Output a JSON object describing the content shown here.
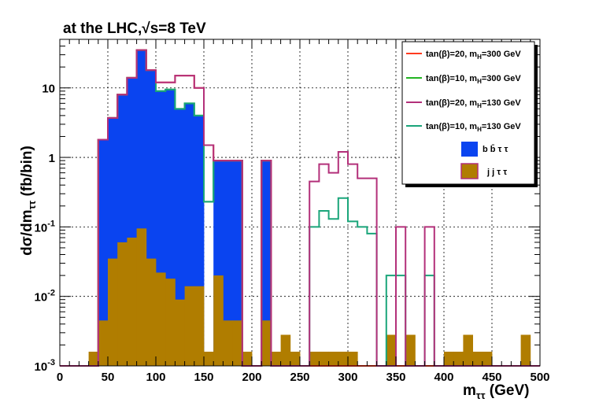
{
  "chart_data": {
    "type": "bar",
    "title": "at the LHC,√s=8 TeV",
    "xlabel": "mττ (GeV)",
    "ylabel": "dσ/dmττ (fb/bin)",
    "xlim": [
      0,
      500
    ],
    "ylim": [
      0.001,
      50
    ],
    "y_scale": "log",
    "bin_width": 10,
    "grid": true,
    "legend_position": "top-right",
    "x_ticks": [
      "0",
      "50",
      "100",
      "150",
      "200",
      "250",
      "300",
      "350",
      "400",
      "450",
      "500"
    ],
    "y_ticks": [
      {
        "base": "10",
        "exp": "-3",
        "value": 0.001
      },
      {
        "base": "10",
        "exp": "-2",
        "value": 0.01
      },
      {
        "base": "10",
        "exp": "-1",
        "value": 0.1
      },
      {
        "base": "1",
        "exp": "",
        "value": 1
      },
      {
        "base": "10",
        "exp": "",
        "value": 10
      }
    ],
    "bin_edges_start": [
      0,
      10,
      20,
      30,
      40,
      50,
      60,
      70,
      80,
      90,
      100,
      110,
      120,
      130,
      140,
      150,
      160,
      170,
      180,
      190,
      200,
      210,
      220,
      230,
      240,
      250,
      260,
      270,
      280,
      290,
      300,
      310,
      320,
      330,
      340,
      350,
      360,
      370,
      380,
      390,
      400,
      410,
      420,
      430,
      440,
      450,
      460,
      470,
      480,
      490
    ],
    "series": [
      {
        "name": "tan(β)=20, m_H=300 GeV",
        "label_main": "tan(β)=20, m",
        "label_sub": "H",
        "label_tail": "=300 GeV",
        "color": "#ff3b1f",
        "style": "step",
        "values": [
          0.001,
          0.001,
          0.001,
          0.001,
          1.8,
          3.7,
          8.0,
          14.0,
          35.0,
          18.0,
          12.0,
          12.0,
          15.0,
          15.0,
          10.0,
          1.5,
          0.9,
          0.9,
          0.9,
          0.001,
          0.001,
          0.9,
          0.001,
          0.001,
          0.001,
          0.001,
          0.001,
          0.001,
          0.001,
          0.001,
          0.001,
          0.001,
          0.001,
          0.001,
          0.001,
          0.001,
          0.001,
          0.001,
          0.001,
          0.001,
          0.001,
          0.001,
          0.001,
          0.001,
          0.001,
          0.001,
          0.001,
          0.001,
          0.001,
          0.001
        ]
      },
      {
        "name": "tan(β)=10, m_H=300 GeV",
        "label_main": "tan(β)=10, m",
        "label_sub": "H",
        "label_tail": "=300 GeV",
        "color": "#22b422",
        "style": "step",
        "values": [
          0.001,
          0.001,
          0.001,
          0.001,
          1.8,
          3.7,
          8.0,
          14.0,
          35.0,
          18.0,
          9.0,
          9.5,
          5.0,
          6.0,
          4.0,
          0.23,
          0.9,
          0.9,
          0.9,
          0.001,
          0.001,
          0.9,
          0.001,
          0.001,
          0.001,
          0.001,
          0.001,
          0.001,
          0.001,
          0.001,
          0.001,
          0.001,
          0.001,
          0.001,
          0.001,
          0.001,
          0.001,
          0.001,
          0.001,
          0.001,
          0.001,
          0.001,
          0.001,
          0.001,
          0.001,
          0.001,
          0.001,
          0.001,
          0.001,
          0.001
        ]
      },
      {
        "name": "tan(β)=20, m_H=130 GeV",
        "label_main": "tan(β)=20, m",
        "label_sub": "H",
        "label_tail": "=130 GeV",
        "color": "#b3307a",
        "style": "step",
        "values": [
          0.001,
          0.001,
          0.001,
          0.001,
          1.8,
          3.7,
          8.0,
          14.0,
          35.0,
          18.0,
          12.0,
          12.0,
          15.0,
          15.0,
          10.0,
          1.5,
          0.9,
          0.9,
          0.9,
          0.001,
          0.001,
          0.9,
          0.001,
          0.001,
          0.001,
          0.001,
          0.45,
          0.8,
          0.6,
          1.2,
          0.8,
          0.5,
          0.5,
          0.001,
          0.001,
          0.1,
          0.001,
          0.001,
          0.1,
          0.001,
          0.001,
          0.001,
          0.001,
          0.001,
          0.001,
          0.001,
          0.001,
          0.001,
          0.001,
          0.001
        ]
      },
      {
        "name": "tan(β)=10, m_H=130 GeV",
        "label_main": "tan(β)=10, m",
        "label_sub": "H",
        "label_tail": "=130 GeV",
        "color": "#1aa57a",
        "style": "step",
        "values": [
          0.001,
          0.001,
          0.001,
          0.001,
          1.8,
          3.7,
          8.0,
          14.0,
          35.0,
          18.0,
          9.0,
          9.5,
          5.0,
          6.0,
          4.0,
          0.23,
          0.9,
          0.9,
          0.9,
          0.001,
          0.001,
          0.9,
          0.001,
          0.001,
          0.001,
          0.001,
          0.1,
          0.17,
          0.13,
          0.26,
          0.12,
          0.1,
          0.08,
          0.001,
          0.02,
          0.02,
          0.001,
          0.001,
          0.02,
          0.001,
          0.001,
          0.001,
          0.001,
          0.001,
          0.001,
          0.001,
          0.001,
          0.001,
          0.001,
          0.001
        ]
      },
      {
        "name": "b b̄ τ τ",
        "label_main": "b b̄ τ τ",
        "label_sub": "",
        "label_tail": "",
        "color": "#0a44f0",
        "style": "fill",
        "values": [
          0.001,
          0.001,
          0.001,
          0.001,
          1.8,
          3.7,
          8.0,
          14.0,
          35.0,
          18.0,
          9.0,
          9.5,
          5.0,
          6.0,
          4.0,
          0.0015,
          0.9,
          0.9,
          0.9,
          0.001,
          0.001,
          0.9,
          0.001,
          0.001,
          0.001,
          0.001,
          0.001,
          0.001,
          0.001,
          0.001,
          0.001,
          0.001,
          0.001,
          0.001,
          0.001,
          0.001,
          0.001,
          0.001,
          0.001,
          0.001,
          0.001,
          0.001,
          0.001,
          0.001,
          0.001,
          0.001,
          0.001,
          0.001,
          0.001,
          0.001
        ]
      },
      {
        "name": "j j τ τ",
        "label_main": "j j τ τ",
        "label_sub": "",
        "label_tail": "",
        "color": "#b07d00",
        "style": "fill",
        "values": [
          0.001,
          0.001,
          0.001,
          0.0016,
          0.0045,
          0.035,
          0.06,
          0.07,
          0.095,
          0.035,
          0.022,
          0.018,
          0.009,
          0.014,
          0.014,
          0.0016,
          0.02,
          0.0045,
          0.0045,
          0.0016,
          0.001,
          0.0045,
          0.0016,
          0.0028,
          0.0016,
          0.001,
          0.0016,
          0.0016,
          0.0016,
          0.0016,
          0.0016,
          0.001,
          0.001,
          0.001,
          0.0028,
          0.001,
          0.0028,
          0.001,
          0.001,
          0.001,
          0.0016,
          0.0016,
          0.0028,
          0.0016,
          0.0016,
          0.001,
          0.001,
          0.001,
          0.0028,
          0.001
        ]
      }
    ]
  }
}
